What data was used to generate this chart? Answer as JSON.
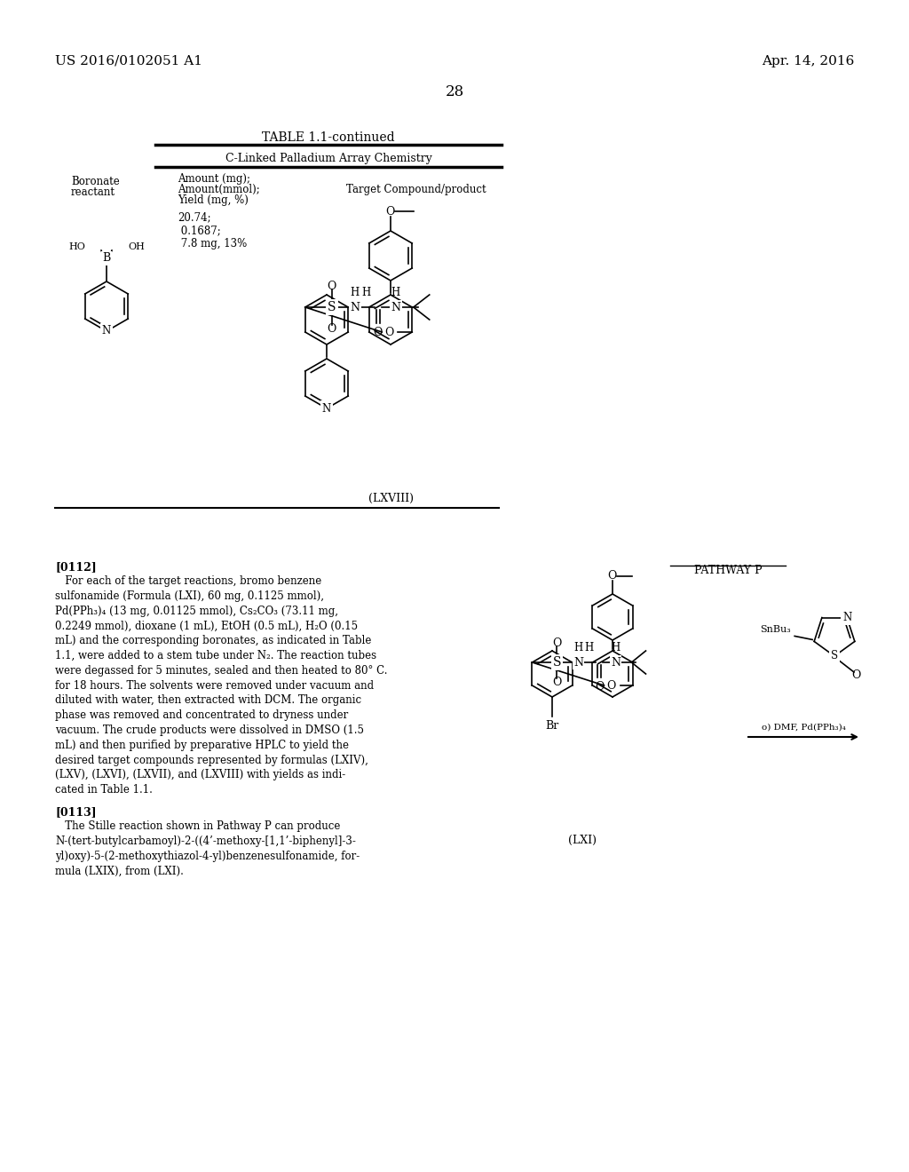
{
  "bg_color": "#ffffff",
  "header_left": "US 2016/0102051 A1",
  "header_right": "Apr. 14, 2016",
  "page_number": "28",
  "table_title": "TABLE 1.1-continued",
  "table_subtitle": "C-Linked Palladium Array Chemistry",
  "col1_header_line1": "Boronate",
  "col1_header_line2": "reactant",
  "col2_header_line1": "Amount (mg);",
  "col2_header_line2": "Amount(mmol);",
  "col2_header_line3": "Yield (mg, %)",
  "col3_header": "Target Compound/product",
  "yield_data": "20.74;\n 0.1687;\n 7.8 mg, 13%",
  "compound_label": "(LXVIII)",
  "pathway_label": "PATHWAY P",
  "lxi_label": "(LXI)",
  "long_text_112": "   For each of the target reactions, bromo benzene\nsulfonamide (Formula (LXI), 60 mg, 0.1125 mmol),\nPd(PPh₃)₄ (13 mg, 0.01125 mmol), Cs₂CO₃ (73.11 mg,\n0.2249 mmol), dioxane (1 mL), EtOH (0.5 mL), H₂O (0.15\nmL) and the corresponding boronates, as indicated in Table\n1.1, were added to a stem tube under N₂. The reaction tubes\nwere degassed for 5 minutes, sealed and then heated to 80° C.\nfor 18 hours. The solvents were removed under vacuum and\ndiluted with water, then extracted with DCM. The organic\nphase was removed and concentrated to dryness under\nvacuum. The crude products were dissolved in DMSO (1.5\nmL) and then purified by preparative HPLC to yield the\ndesired target compounds represented by formulas (LXIV),\n(LXV), (LXVI), (LXVII), and (LXVIII) with yields as indi-\ncated in Table 1.1.",
  "long_text_113": "   The Stille reaction shown in Pathway P can produce\nN-(tert-butylcarbamoyl)-2-((4’-methoxy-[1,1’-biphenyl]-3-\nyl)oxy)-5-(2-methoxythiazol-4-yl)benzenesulfonamide, for-\nmula (LXIX), from (LXI).",
  "arrow_label": "o) DMF, Pd(PPh₃)₄"
}
